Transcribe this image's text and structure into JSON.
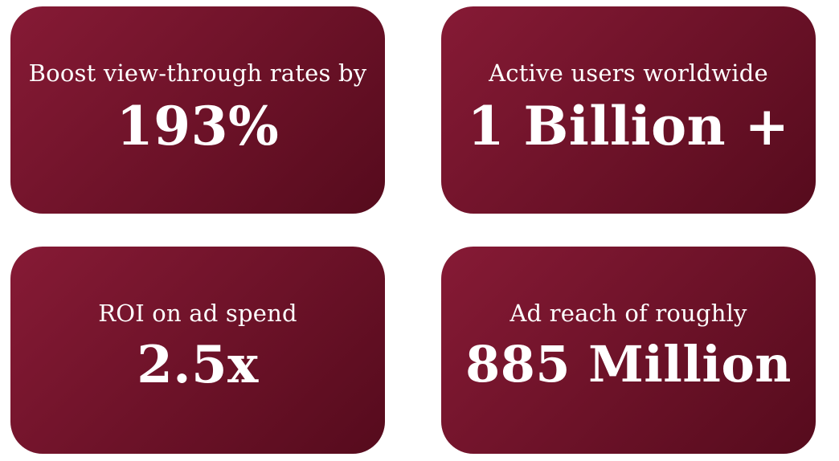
{
  "stats": [
    {
      "caption": "Boost view-through rates by",
      "value": "193%"
    },
    {
      "caption": "Active users worldwide",
      "value": "1 Billion +"
    },
    {
      "caption": "ROI on ad spend",
      "value": "2.5x"
    },
    {
      "caption": "Ad reach of roughly",
      "value": "885 Million"
    }
  ],
  "colors": {
    "card_gradient_start": "#861a35",
    "card_gradient_end": "#560b1d",
    "text": "#ffffff",
    "background": "#ffffff"
  }
}
